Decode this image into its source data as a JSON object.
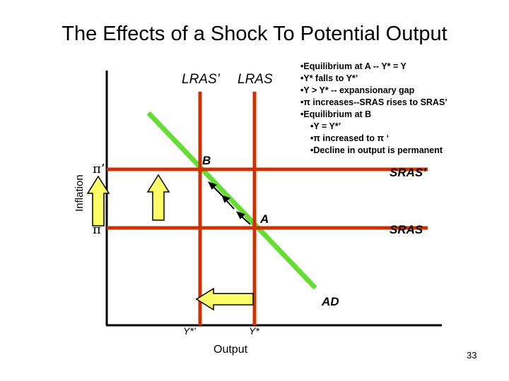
{
  "title": "The Effects of a Shock To Potential Output",
  "axes": {
    "y_label": "Inflation",
    "x_label": "Output",
    "y_ticks": [
      {
        "label": "π’",
        "name": "pi-prime"
      },
      {
        "label": "π",
        "name": "pi"
      }
    ],
    "x_ticks": [
      {
        "label": "Y*’",
        "name": "y-star-prime"
      },
      {
        "label": "Y*",
        "name": "y-star"
      }
    ]
  },
  "curves": {
    "lras_prime": "LRAS’",
    "lras": "LRAS",
    "sras_prime": "SRAS’",
    "sras": "SRAS",
    "ad": "AD"
  },
  "points": {
    "a": "A",
    "b": "B"
  },
  "notes": [
    {
      "text": "•Equilibrium at A -- Y* = Y",
      "indent": false
    },
    {
      "text": "•Y* falls to Y*’",
      "indent": false
    },
    {
      "text": "•Y > Y* -- expansionary gap",
      "indent": false
    },
    {
      "text": "•π increases--SRAS rises to SRAS’",
      "indent": false
    },
    {
      "text": "•Equilibrium at B",
      "indent": false
    },
    {
      "text": "•Y = Y*’",
      "indent": true
    },
    {
      "text": "•π increased to π ‘",
      "indent": true
    },
    {
      "text": "•Decline in output is permanent",
      "indent": true
    }
  ],
  "page_number": "33",
  "colors": {
    "curve_lines": "#cc3300",
    "ad_line": "#66dd33",
    "shift_arrow_fill": "#ffff66",
    "axis": "#000000"
  }
}
